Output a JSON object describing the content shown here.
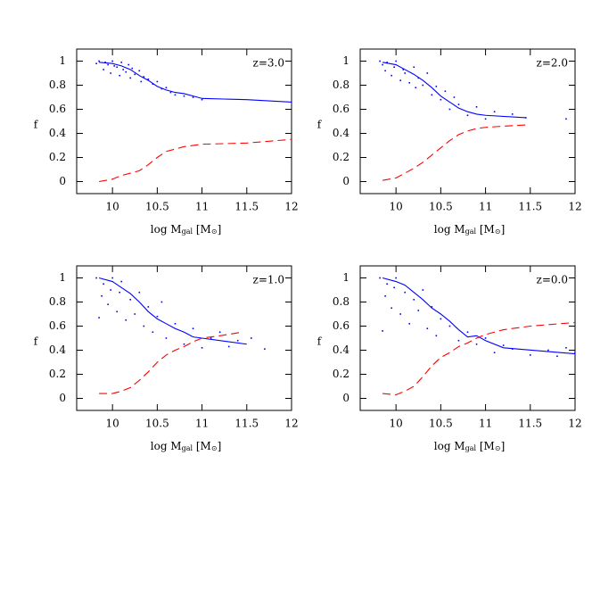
{
  "chart_data": [
    {
      "type": "line",
      "annotation": "z=3.0",
      "ylabel": "f",
      "xlabel": [
        "log M",
        "gal",
        " [M",
        "⊙",
        "]"
      ],
      "xlim": [
        9.6,
        12
      ],
      "ylim": [
        -0.1,
        1.1
      ],
      "xticks": [
        10,
        10.5,
        11,
        11.5,
        12
      ],
      "yticks": [
        0,
        0.2,
        0.4,
        0.6,
        0.8,
        1
      ],
      "series": [
        {
          "mode": "points",
          "color": "#0000ff",
          "x": [
            9.82,
            9.85,
            9.9,
            9.92,
            9.95,
            9.98,
            10.0,
            10.02,
            10.05,
            10.08,
            10.1,
            10.12,
            10.15,
            10.18,
            10.2,
            10.22,
            10.25,
            10.3,
            10.32,
            10.35,
            10.4,
            10.45,
            10.5,
            10.55,
            10.6,
            10.65,
            10.7,
            10.8,
            10.9,
            11.0
          ],
          "values": [
            0.98,
            1.0,
            0.93,
            0.99,
            0.97,
            0.9,
            1.0,
            0.96,
            0.95,
            0.88,
            0.99,
            0.93,
            0.91,
            0.97,
            0.86,
            0.94,
            0.89,
            0.92,
            0.83,
            0.87,
            0.85,
            0.81,
            0.83,
            0.77,
            0.78,
            0.74,
            0.72,
            0.71,
            0.7,
            0.68
          ]
        },
        {
          "mode": "line",
          "dashed": false,
          "color": "#0000ff",
          "x": [
            9.85,
            10.0,
            10.1,
            10.2,
            10.3,
            10.4,
            10.5,
            10.6,
            10.7,
            10.8,
            10.9,
            11.0,
            11.5,
            12.0
          ],
          "values": [
            0.99,
            0.98,
            0.96,
            0.93,
            0.88,
            0.84,
            0.79,
            0.76,
            0.74,
            0.73,
            0.71,
            0.69,
            0.68,
            0.66
          ]
        },
        {
          "mode": "line",
          "dashed": true,
          "color": "#ff0000",
          "x": [
            9.85,
            10.0,
            10.1,
            10.2,
            10.3,
            10.4,
            10.5,
            10.6,
            10.7,
            10.8,
            11.0,
            11.5,
            12.0
          ],
          "values": [
            0.0,
            0.02,
            0.05,
            0.07,
            0.09,
            0.14,
            0.2,
            0.25,
            0.27,
            0.29,
            0.31,
            0.32,
            0.35
          ]
        }
      ]
    },
    {
      "type": "line",
      "annotation": "z=2.0",
      "ylabel": "f",
      "xlabel": [
        "log M",
        "gal",
        " [M",
        "⊙",
        "]"
      ],
      "xlim": [
        9.6,
        12
      ],
      "ylim": [
        -0.1,
        1.1
      ],
      "xticks": [
        10,
        10.5,
        11,
        11.5,
        12
      ],
      "yticks": [
        0,
        0.2,
        0.4,
        0.6,
        0.8,
        1
      ],
      "series": [
        {
          "mode": "points",
          "color": "#0000ff",
          "x": [
            9.82,
            9.85,
            9.88,
            9.9,
            9.95,
            9.98,
            10.0,
            10.05,
            10.08,
            10.1,
            10.15,
            10.2,
            10.22,
            10.25,
            10.3,
            10.35,
            10.4,
            10.45,
            10.5,
            10.55,
            10.6,
            10.65,
            10.7,
            10.8,
            10.9,
            11.0,
            11.1,
            11.3,
            11.45,
            11.9
          ],
          "values": [
            1.0,
            0.97,
            0.92,
            0.99,
            0.88,
            0.95,
            1.0,
            0.84,
            0.93,
            0.9,
            0.82,
            0.95,
            0.78,
            0.86,
            0.8,
            0.9,
            0.72,
            0.79,
            0.68,
            0.75,
            0.6,
            0.7,
            0.64,
            0.55,
            0.62,
            0.52,
            0.58,
            0.56,
            0.53,
            0.52
          ]
        },
        {
          "mode": "line",
          "dashed": false,
          "color": "#0000ff",
          "x": [
            9.85,
            10.0,
            10.1,
            10.2,
            10.3,
            10.4,
            10.5,
            10.6,
            10.7,
            10.8,
            10.9,
            11.0,
            11.45
          ],
          "values": [
            0.99,
            0.97,
            0.93,
            0.89,
            0.84,
            0.78,
            0.71,
            0.66,
            0.61,
            0.58,
            0.56,
            0.55,
            0.53
          ]
        },
        {
          "mode": "line",
          "dashed": true,
          "color": "#ff0000",
          "x": [
            9.85,
            10.0,
            10.1,
            10.2,
            10.3,
            10.4,
            10.5,
            10.6,
            10.7,
            10.8,
            10.9,
            11.0,
            11.2,
            11.45
          ],
          "values": [
            0.01,
            0.03,
            0.07,
            0.11,
            0.16,
            0.22,
            0.28,
            0.34,
            0.39,
            0.42,
            0.44,
            0.45,
            0.46,
            0.47
          ]
        }
      ]
    },
    {
      "type": "line",
      "annotation": "z=1.0",
      "ylabel": "f",
      "xlabel": [
        "log M",
        "gal",
        " [M",
        "⊙",
        "]"
      ],
      "xlim": [
        9.6,
        12
      ],
      "ylim": [
        -0.1,
        1.1
      ],
      "xticks": [
        10,
        10.5,
        11,
        11.5,
        12
      ],
      "yticks": [
        0,
        0.2,
        0.4,
        0.6,
        0.8,
        1
      ],
      "series": [
        {
          "mode": "points",
          "color": "#0000ff",
          "x": [
            9.82,
            9.85,
            9.88,
            9.9,
            9.95,
            9.98,
            10.0,
            10.05,
            10.08,
            10.1,
            10.15,
            10.2,
            10.25,
            10.3,
            10.35,
            10.4,
            10.45,
            10.5,
            10.55,
            10.6,
            10.7,
            10.8,
            10.9,
            11.0,
            11.1,
            11.2,
            11.3,
            11.4,
            11.55,
            11.7
          ],
          "values": [
            1.0,
            0.67,
            0.85,
            0.95,
            0.78,
            0.9,
            1.0,
            0.72,
            0.88,
            0.97,
            0.65,
            0.82,
            0.7,
            0.88,
            0.6,
            0.76,
            0.55,
            0.68,
            0.8,
            0.5,
            0.62,
            0.45,
            0.58,
            0.42,
            0.5,
            0.55,
            0.43,
            0.48,
            0.5,
            0.41
          ]
        },
        {
          "mode": "line",
          "dashed": false,
          "color": "#0000ff",
          "x": [
            9.85,
            10.0,
            10.1,
            10.2,
            10.3,
            10.4,
            10.5,
            10.6,
            10.7,
            10.8,
            10.9,
            11.0,
            11.5
          ],
          "values": [
            1.0,
            0.97,
            0.92,
            0.87,
            0.8,
            0.72,
            0.66,
            0.62,
            0.58,
            0.55,
            0.51,
            0.5,
            0.45
          ]
        },
        {
          "mode": "line",
          "dashed": true,
          "color": "#ff0000",
          "x": [
            9.85,
            10.0,
            10.1,
            10.2,
            10.3,
            10.4,
            10.5,
            10.6,
            10.7,
            10.8,
            10.9,
            11.0,
            11.2,
            11.45
          ],
          "values": [
            0.04,
            0.04,
            0.06,
            0.09,
            0.15,
            0.22,
            0.3,
            0.36,
            0.4,
            0.43,
            0.47,
            0.5,
            0.52,
            0.55
          ]
        }
      ]
    },
    {
      "type": "line",
      "annotation": "z=0.0",
      "ylabel": "f",
      "xlabel": [
        "log M",
        "gal",
        " [M",
        "⊙",
        "]"
      ],
      "xlim": [
        9.6,
        12
      ],
      "ylim": [
        -0.1,
        1.1
      ],
      "xticks": [
        10,
        10.5,
        11,
        11.5,
        12
      ],
      "yticks": [
        0,
        0.2,
        0.4,
        0.6,
        0.8,
        1
      ],
      "series": [
        {
          "mode": "points",
          "color": "#0000ff",
          "x": [
            9.82,
            9.85,
            9.88,
            9.9,
            9.95,
            9.98,
            10.0,
            10.05,
            10.1,
            10.15,
            10.2,
            10.25,
            10.3,
            10.35,
            10.4,
            10.45,
            10.5,
            10.6,
            10.7,
            10.8,
            10.9,
            11.0,
            11.1,
            11.2,
            11.3,
            11.5,
            11.7,
            11.8,
            11.9,
            12.0
          ],
          "values": [
            1.0,
            0.56,
            0.85,
            0.95,
            0.75,
            0.92,
            1.0,
            0.7,
            0.88,
            0.62,
            0.82,
            0.73,
            0.9,
            0.58,
            0.76,
            0.52,
            0.66,
            0.6,
            0.48,
            0.55,
            0.45,
            0.5,
            0.38,
            0.44,
            0.41,
            0.36,
            0.4,
            0.35,
            0.42,
            0.38
          ]
        },
        {
          "mode": "line",
          "dashed": false,
          "color": "#0000ff",
          "x": [
            9.85,
            10.0,
            10.1,
            10.2,
            10.3,
            10.4,
            10.5,
            10.6,
            10.7,
            10.8,
            10.9,
            11.0,
            11.2,
            12.0
          ],
          "values": [
            1.0,
            0.97,
            0.94,
            0.88,
            0.82,
            0.75,
            0.7,
            0.64,
            0.57,
            0.51,
            0.52,
            0.48,
            0.42,
            0.37
          ]
        },
        {
          "mode": "line",
          "dashed": true,
          "color": "#ff0000",
          "x": [
            9.85,
            10.0,
            10.1,
            10.2,
            10.3,
            10.4,
            10.5,
            10.6,
            10.7,
            10.8,
            10.9,
            11.0,
            11.2,
            11.5,
            12.0
          ],
          "values": [
            0.04,
            0.03,
            0.06,
            0.1,
            0.18,
            0.27,
            0.34,
            0.38,
            0.43,
            0.46,
            0.5,
            0.53,
            0.57,
            0.6,
            0.63
          ]
        }
      ]
    }
  ]
}
